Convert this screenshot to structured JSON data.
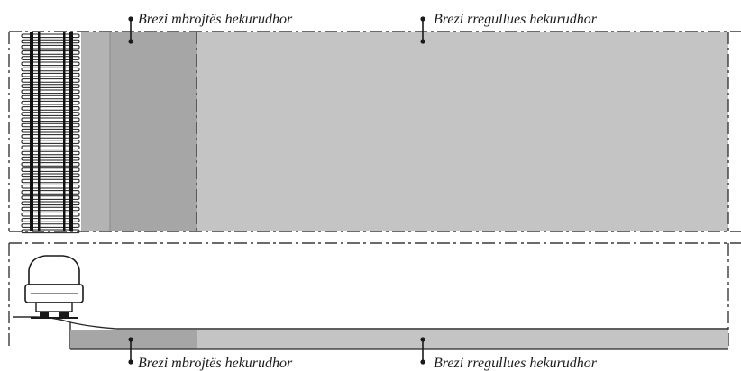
{
  "labels": {
    "top_protective": "Brezi mbrojtës hekurudhor",
    "top_regulating": "Brezi rregullues hekurudhor",
    "bottom_protective": "Brezi mbrojtës hekurudhor",
    "bottom_regulating": "Brezi rregullues hekurudhor"
  },
  "colors": {
    "protective_zone": "#a6a6a6",
    "regulating_zone": "#c4c4c4",
    "ballast": "#b3b3b3",
    "outline": "#2a2a2a"
  }
}
